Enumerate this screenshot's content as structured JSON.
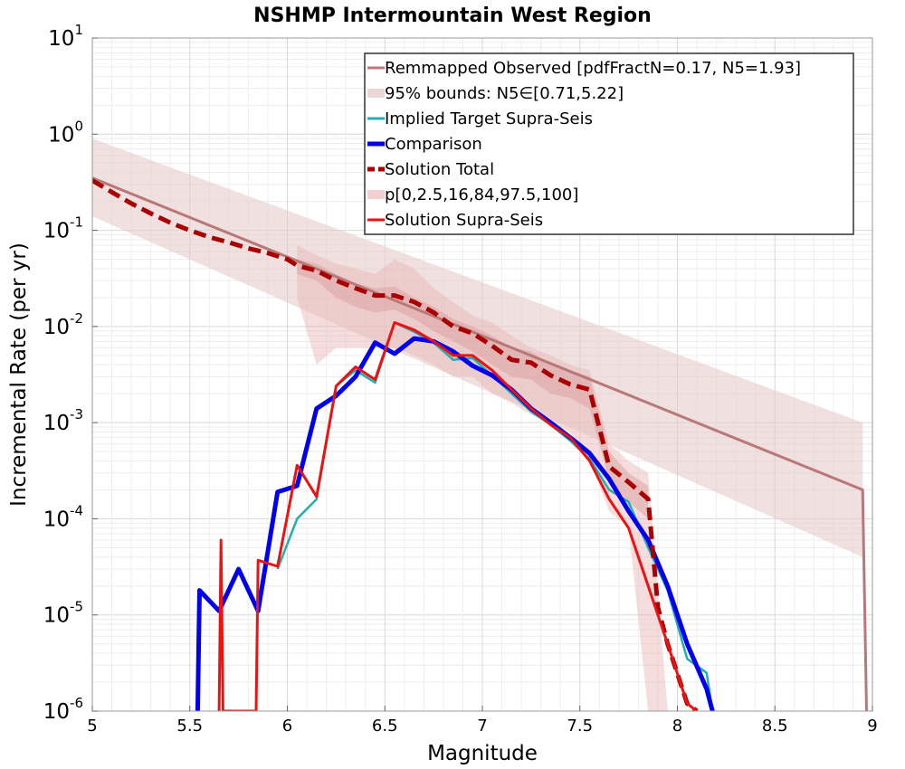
{
  "chart_data": {
    "type": "line",
    "title": "NSHMP Intermountain West Region",
    "xlabel": "Magnitude",
    "ylabel": "Incremental Rate (per yr)",
    "xlim": [
      5,
      9
    ],
    "ylim": [
      1e-06,
      10
    ],
    "y_scale": "log",
    "grid": true,
    "legend_position": "top-right",
    "x_ticks": [
      "5",
      "5.5",
      "6",
      "6.5",
      "7",
      "7.5",
      "8",
      "8.5",
      "9"
    ],
    "y_ticks": [
      {
        "base": "10",
        "exp": "-6",
        "value": 1e-06
      },
      {
        "base": "10",
        "exp": "-5",
        "value": 1e-05
      },
      {
        "base": "10",
        "exp": "-4",
        "value": 0.0001
      },
      {
        "base": "10",
        "exp": "-3",
        "value": 0.001
      },
      {
        "base": "10",
        "exp": "-2",
        "value": 0.01
      },
      {
        "base": "10",
        "exp": "-1",
        "value": 0.1
      },
      {
        "base": "10",
        "exp": "0",
        "value": 1
      },
      {
        "base": "10",
        "exp": "1",
        "value": 10
      }
    ],
    "legend": [
      {
        "label": "Remmapped Observed [pdfFractN=0.17, N5=1.93]",
        "style": "line",
        "color": "#b87878"
      },
      {
        "label": "95% bounds: N5∈[0.71,5.22]",
        "style": "band",
        "color": "#ecd6d6"
      },
      {
        "label": "Implied Target Supra-Seis",
        "style": "line",
        "color": "#20b0b0"
      },
      {
        "label": "Comparison",
        "style": "thick",
        "color": "#0000ee"
      },
      {
        "label": "Solution Total",
        "style": "dashed",
        "color": "#aa0000"
      },
      {
        "label": "p[0,2.5,16,84,97.5,100]",
        "style": "band",
        "color": "#f0d0d0"
      },
      {
        "label": "Solution Supra-Seis",
        "style": "line",
        "color": "#ee1111"
      }
    ],
    "bands": [
      {
        "name": "95% bounds: N5∈[0.71,5.22]",
        "color": "#e6cccc",
        "opacity": 0.6,
        "x": [
          5.0,
          8.95
        ],
        "upper": [
          0.9,
          0.001
        ],
        "lower": [
          0.14,
          4e-05
        ]
      },
      {
        "name": "p[0,2.5,16,84,97.5,100] outer",
        "color": "#e8b4b4",
        "opacity": 0.45,
        "x": [
          6.05,
          6.15,
          6.25,
          6.35,
          6.45,
          6.55,
          6.65,
          6.75,
          6.85,
          6.95,
          7.05,
          7.15,
          7.25,
          7.35,
          7.45,
          7.55,
          7.65,
          7.75,
          7.85,
          7.95,
          8.05
        ],
        "upper": [
          0.07,
          0.055,
          0.045,
          0.04,
          0.035,
          0.05,
          0.04,
          0.025,
          0.018,
          0.013,
          0.011,
          0.008,
          0.006,
          0.005,
          0.004,
          0.0035,
          0.0006,
          0.0004,
          0.0003,
          1e-06,
          1e-06
        ],
        "lower": [
          0.02,
          0.004,
          0.006,
          0.006,
          0.006,
          0.006,
          0.005,
          0.004,
          0.003,
          0.003,
          0.002,
          0.0016,
          0.0012,
          0.001,
          0.0008,
          0.0004,
          0.00012,
          8e-05,
          1e-06,
          1e-06,
          1e-06
        ]
      },
      {
        "name": "p[0,2.5,16,84,97.5,100] inner",
        "color": "#d89a9a",
        "opacity": 0.45,
        "x": [
          6.05,
          6.15,
          6.25,
          6.35,
          6.45,
          6.55,
          6.65,
          6.75,
          6.85,
          6.95,
          7.05,
          7.15,
          7.25,
          7.35,
          7.45,
          7.55,
          7.65,
          7.75,
          7.85
        ],
        "upper": [
          0.05,
          0.045,
          0.035,
          0.028,
          0.025,
          0.026,
          0.02,
          0.016,
          0.012,
          0.01,
          0.008,
          0.006,
          0.0055,
          0.004,
          0.0035,
          0.003,
          0.0005,
          0.0003,
          0.00022
        ],
        "lower": [
          0.035,
          0.03,
          0.02,
          0.016,
          0.014,
          0.015,
          0.012,
          0.009,
          0.007,
          0.0055,
          0.004,
          0.003,
          0.0028,
          0.002,
          0.0018,
          0.0014,
          0.00025,
          0.00015,
          0.0001
        ]
      }
    ],
    "series": [
      {
        "name": "Remmapped Observed [pdfFractN=0.17, N5=1.93]",
        "color": "#b87878",
        "width": 3,
        "dash": "",
        "x": [
          5.0,
          8.95,
          8.97
        ],
        "y": [
          0.35,
          0.0002,
          1e-06
        ]
      },
      {
        "name": "Implied Target Supra-Seis",
        "color": "#20b0b0",
        "width": 2.5,
        "dash": "",
        "x": [
          5.95,
          6.05,
          6.15,
          6.25,
          6.35,
          6.45,
          6.55,
          6.65,
          6.75,
          6.85,
          6.95,
          7.05,
          7.15,
          7.25,
          7.35,
          7.45,
          7.55,
          7.65,
          7.75,
          7.85,
          7.95,
          8.05,
          8.15,
          8.18
        ],
        "y": [
          3e-05,
          0.0001,
          0.00016,
          0.0024,
          0.0035,
          0.0026,
          0.011,
          0.0088,
          0.0068,
          0.0045,
          0.0047,
          0.0031,
          0.002,
          0.0013,
          0.00095,
          0.00065,
          0.00042,
          0.0002,
          0.00015,
          5e-05,
          1.8e-05,
          3.5e-06,
          2.5e-06,
          1e-06
        ]
      },
      {
        "name": "Comparison",
        "color": "#0000ee",
        "width": 5,
        "dash": "",
        "x": [
          5.54,
          5.55,
          5.65,
          5.75,
          5.85,
          5.95,
          6.05,
          6.15,
          6.25,
          6.35,
          6.45,
          6.55,
          6.65,
          6.75,
          6.85,
          6.95,
          7.05,
          7.15,
          7.25,
          7.35,
          7.45,
          7.55,
          7.65,
          7.75,
          7.85,
          7.95,
          8.05,
          8.15,
          8.18
        ],
        "y": [
          1e-06,
          1.8e-05,
          1.1e-05,
          3e-05,
          1.1e-05,
          0.00019,
          0.00022,
          0.0014,
          0.0019,
          0.003,
          0.0068,
          0.0052,
          0.0075,
          0.007,
          0.0055,
          0.0039,
          0.0031,
          0.0022,
          0.0014,
          0.001,
          0.0007,
          0.00048,
          0.00026,
          0.00012,
          6e-05,
          2e-05,
          5e-06,
          1.7e-06,
          1e-06
        ]
      },
      {
        "name": "Solution Total",
        "color": "#aa0000",
        "width": 5,
        "dash": "14,7",
        "x": [
          5.0,
          5.1,
          5.2,
          5.3,
          5.4,
          5.5,
          5.6,
          5.7,
          5.8,
          5.9,
          6.0,
          6.05,
          6.15,
          6.25,
          6.35,
          6.45,
          6.55,
          6.65,
          6.75,
          6.85,
          6.95,
          7.05,
          7.15,
          7.25,
          7.35,
          7.45,
          7.55,
          7.65,
          7.75,
          7.85,
          7.9,
          7.95,
          8.05,
          8.1
        ],
        "y": [
          0.33,
          0.25,
          0.19,
          0.15,
          0.12,
          0.1,
          0.085,
          0.075,
          0.065,
          0.058,
          0.05,
          0.043,
          0.038,
          0.03,
          0.025,
          0.021,
          0.021,
          0.018,
          0.014,
          0.01,
          0.0085,
          0.0063,
          0.0045,
          0.0042,
          0.0031,
          0.0025,
          0.0022,
          0.00035,
          0.00024,
          0.00016,
          1.2e-05,
          5e-06,
          1.2e-06,
          1e-06
        ]
      },
      {
        "name": "Solution Supra-Seis",
        "color": "#ee1111",
        "width": 3,
        "dash": "",
        "x": [
          5.65,
          5.66,
          5.67,
          5.84,
          5.85,
          5.95,
          6.05,
          6.15,
          6.25,
          6.35,
          6.45,
          6.55,
          6.65,
          6.75,
          6.85,
          6.95,
          7.05,
          7.15,
          7.25,
          7.35,
          7.45,
          7.55,
          7.65,
          7.75,
          7.85,
          7.95,
          8.05,
          8.1
        ],
        "y": [
          1e-06,
          6e-05,
          1e-06,
          1e-06,
          3.7e-05,
          3.2e-05,
          0.00036,
          0.00017,
          0.0024,
          0.0038,
          0.0028,
          0.011,
          0.0092,
          0.007,
          0.005,
          0.005,
          0.0035,
          0.0022,
          0.0014,
          0.00095,
          0.0007,
          0.0004,
          0.00016,
          8e-05,
          2e-05,
          5e-06,
          1.2e-06,
          1e-06
        ]
      }
    ]
  }
}
